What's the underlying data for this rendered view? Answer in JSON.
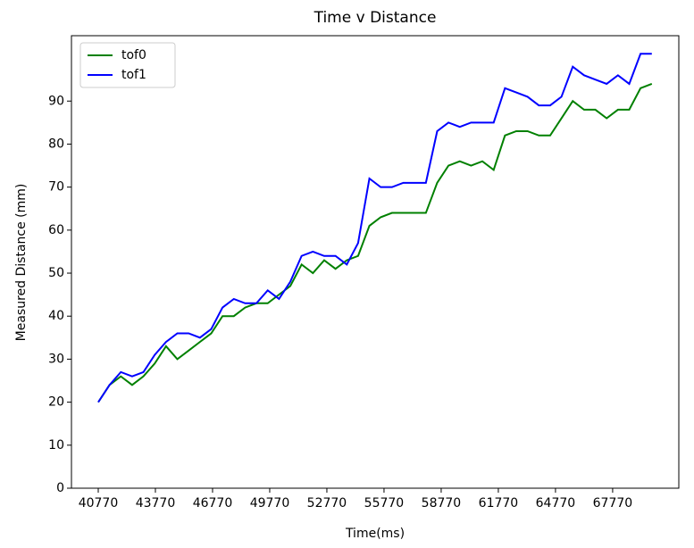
{
  "chart_data": {
    "type": "line",
    "title": "Time v Distance",
    "xlabel": "Time(ms)",
    "ylabel": "Measured Distance (mm)",
    "x": [
      40770,
      41363,
      41956,
      42549,
      43142,
      43735,
      44328,
      44921,
      45514,
      46107,
      46700,
      47293,
      47886,
      48479,
      49072,
      49665,
      50258,
      50851,
      51444,
      52037,
      52630,
      53223,
      53816,
      54409,
      55002,
      55595,
      56188,
      56781,
      57374,
      57967,
      58560,
      59153,
      59746,
      60339,
      60932,
      61525,
      62118,
      62711,
      63304,
      63897,
      64490,
      65083,
      65676,
      66269,
      66862,
      67455,
      68048,
      68641,
      69234,
      69827
    ],
    "series": [
      {
        "name": "tof0",
        "color": "#008000",
        "values": [
          20,
          24,
          26,
          24,
          26,
          29,
          33,
          30,
          32,
          34,
          36,
          40,
          40,
          42,
          43,
          43,
          45,
          47,
          52,
          50,
          53,
          51,
          53,
          54,
          61,
          63,
          64,
          64,
          64,
          64,
          71,
          75,
          76,
          75,
          76,
          74,
          82,
          83,
          83,
          82,
          82,
          86,
          90,
          88,
          88,
          86,
          88,
          88,
          93,
          94
        ]
      },
      {
        "name": "tof1",
        "color": "#0000ff",
        "values": [
          20,
          24,
          27,
          26,
          27,
          31,
          34,
          36,
          36,
          35,
          37,
          42,
          44,
          43,
          43,
          46,
          44,
          48,
          54,
          55,
          54,
          54,
          52,
          57,
          72,
          70,
          70,
          71,
          71,
          71,
          83,
          85,
          84,
          85,
          85,
          85,
          93,
          92,
          91,
          89,
          89,
          91,
          98,
          96,
          95,
          94,
          96,
          94,
          101,
          101
        ]
      }
    ],
    "xlim": [
      39364,
      71243
    ],
    "ylim": [
      0,
      105.2
    ],
    "xticks": [
      40770,
      43770,
      46770,
      49770,
      52770,
      55770,
      58770,
      61770,
      64770,
      67770
    ],
    "yticks": [
      0,
      10,
      20,
      30,
      40,
      50,
      60,
      70,
      80,
      90
    ],
    "legend": "upper left"
  }
}
